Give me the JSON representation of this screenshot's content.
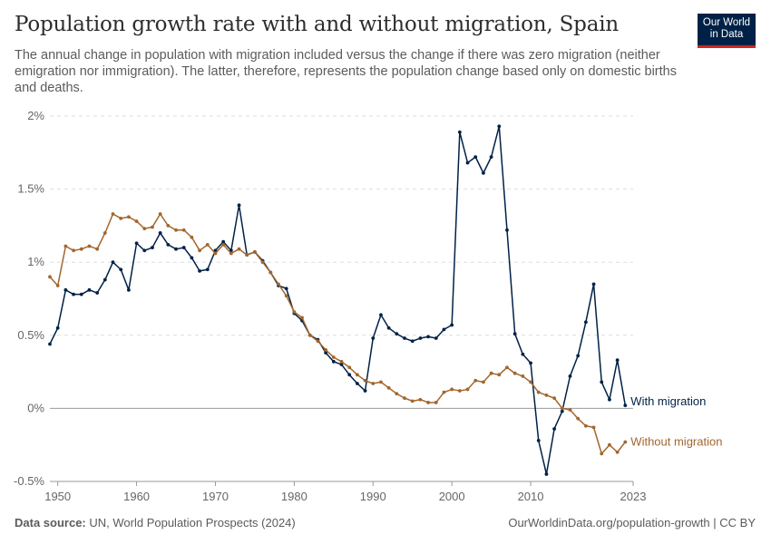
{
  "header": {
    "title": "Population growth rate with and without migration, Spain",
    "subtitle": "The annual change in population with migration included versus the change if there was zero migration (neither emigration nor immigration). The latter, therefore, represents the population change based only on domestic births and deaths."
  },
  "logo": {
    "line1": "Our World",
    "line2": "in Data",
    "bg_color": "#002147",
    "accent_color": "#ce261e"
  },
  "footer": {
    "source_label": "Data source:",
    "source_text": "UN, World Population Prospects (2024)",
    "url_text": "OurWorldinData.org/population-growth | CC BY"
  },
  "chart_data": {
    "type": "line",
    "xlim": [
      1949,
      2023
    ],
    "ylim": [
      -0.5,
      2
    ],
    "y_ticks": [
      {
        "value": -0.5,
        "label": "-0.5%"
      },
      {
        "value": 0,
        "label": "0%"
      },
      {
        "value": 0.5,
        "label": "0.5%"
      },
      {
        "value": 1,
        "label": "1%"
      },
      {
        "value": 1.5,
        "label": "1.5%"
      },
      {
        "value": 2,
        "label": "2%"
      }
    ],
    "x_ticks": [
      {
        "value": 1950,
        "label": "1950"
      },
      {
        "value": 1960,
        "label": "1960"
      },
      {
        "value": 1970,
        "label": "1970"
      },
      {
        "value": 1980,
        "label": "1980"
      },
      {
        "value": 1990,
        "label": "1990"
      },
      {
        "value": 2000,
        "label": "2000"
      },
      {
        "value": 2010,
        "label": "2010"
      },
      {
        "value": 2023,
        "label": "2023"
      }
    ],
    "x_start": 1949,
    "series": [
      {
        "name": "With migration",
        "color": "#002147",
        "values": [
          0.44,
          0.55,
          0.81,
          0.78,
          0.78,
          0.81,
          0.79,
          0.88,
          1.0,
          0.95,
          0.81,
          1.13,
          1.08,
          1.1,
          1.2,
          1.12,
          1.09,
          1.1,
          1.03,
          0.94,
          0.95,
          1.08,
          1.14,
          1.08,
          1.39,
          1.05,
          1.07,
          1.01,
          0.93,
          0.84,
          0.82,
          0.65,
          0.6,
          0.5,
          0.47,
          0.38,
          0.32,
          0.3,
          0.23,
          0.17,
          0.12,
          0.48,
          0.64,
          0.55,
          0.51,
          0.48,
          0.46,
          0.48,
          0.49,
          0.48,
          0.54,
          0.57,
          1.89,
          1.68,
          1.72,
          1.61,
          1.72,
          1.93,
          1.22,
          0.51,
          0.37,
          0.31,
          -0.22,
          -0.45,
          -0.14,
          -0.02,
          0.22,
          0.36,
          0.59,
          0.85,
          0.18,
          0.06,
          0.33,
          0.02
        ]
      },
      {
        "name": "Without migration",
        "color": "#a2662d",
        "values": [
          0.9,
          0.84,
          1.11,
          1.08,
          1.09,
          1.11,
          1.09,
          1.2,
          1.33,
          1.3,
          1.31,
          1.28,
          1.23,
          1.24,
          1.33,
          1.25,
          1.22,
          1.22,
          1.17,
          1.08,
          1.12,
          1.06,
          1.12,
          1.06,
          1.09,
          1.05,
          1.07,
          1.0,
          0.93,
          0.85,
          0.77,
          0.66,
          0.62,
          0.5,
          0.46,
          0.4,
          0.35,
          0.32,
          0.28,
          0.23,
          0.19,
          0.17,
          0.18,
          0.14,
          0.1,
          0.07,
          0.05,
          0.06,
          0.04,
          0.04,
          0.11,
          0.13,
          0.12,
          0.13,
          0.19,
          0.18,
          0.24,
          0.23,
          0.28,
          0.24,
          0.22,
          0.18,
          0.11,
          0.09,
          0.07,
          0.0,
          -0.01,
          -0.07,
          -0.12,
          -0.13,
          -0.31,
          -0.25,
          -0.3,
          -0.23
        ]
      }
    ]
  }
}
